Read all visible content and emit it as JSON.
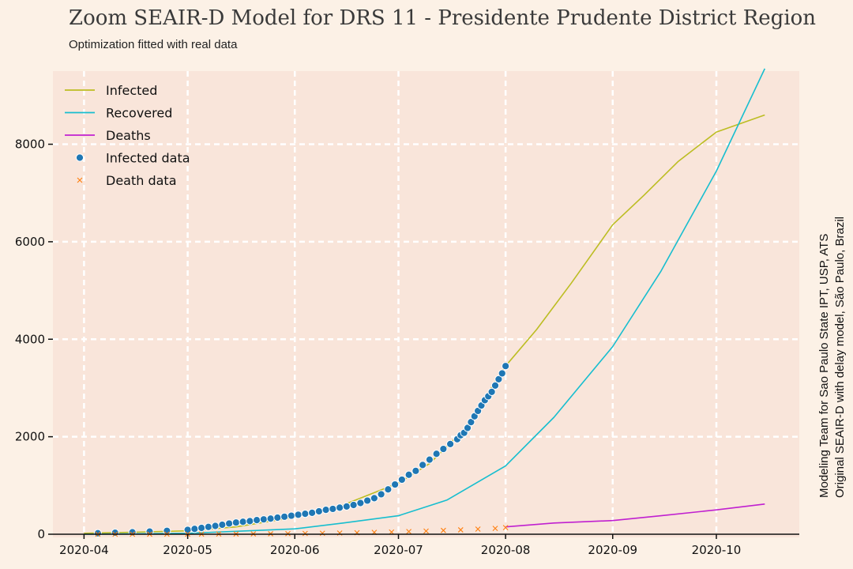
{
  "chart_data": {
    "type": "line",
    "title": "Zoom SEAIR-D Model for DRS 11 - Presidente Prudente District Region",
    "subtitle": "Optimization fitted with real data",
    "credit_lines": [
      "Modeling Team for Sao Paulo State IPT, USP, ATS",
      "Original SEAIR-D with delay model, São Paulo, Brazil"
    ],
    "xlim": [
      "2020-03-23",
      "2020-10-25"
    ],
    "ylim": [
      0,
      9500
    ],
    "grid": true,
    "legend_position": "top-left",
    "x_ticks": [
      {
        "date": "2020-04-01",
        "label": "2020-04"
      },
      {
        "date": "2020-05-01",
        "label": "2020-05"
      },
      {
        "date": "2020-06-01",
        "label": "2020-06"
      },
      {
        "date": "2020-07-01",
        "label": "2020-07"
      },
      {
        "date": "2020-08-01",
        "label": "2020-08"
      },
      {
        "date": "2020-09-01",
        "label": "2020-09"
      },
      {
        "date": "2020-10-01",
        "label": "2020-10"
      }
    ],
    "y_ticks": [
      0,
      2000,
      4000,
      6000,
      8000
    ],
    "series": [
      {
        "name": "Infected",
        "kind": "line",
        "color": "#bcbd22",
        "x": [
          "2020-04-01",
          "2020-04-15",
          "2020-05-01",
          "2020-05-15",
          "2020-06-01",
          "2020-06-15",
          "2020-07-01",
          "2020-07-10",
          "2020-07-20",
          "2020-08-01",
          "2020-08-10",
          "2020-08-20",
          "2020-09-01",
          "2020-09-10",
          "2020-09-20",
          "2020-10-01",
          "2020-10-15"
        ],
        "y": [
          20,
          40,
          70,
          150,
          350,
          600,
          1050,
          1450,
          2150,
          3450,
          4200,
          5150,
          6350,
          6950,
          7650,
          8250,
          8600
        ]
      },
      {
        "name": "Recovered",
        "kind": "line",
        "color": "#17becf",
        "x": [
          "2020-04-01",
          "2020-05-01",
          "2020-05-15",
          "2020-06-01",
          "2020-06-15",
          "2020-07-01",
          "2020-07-15",
          "2020-08-01",
          "2020-08-15",
          "2020-09-01",
          "2020-09-15",
          "2020-10-01",
          "2020-10-15"
        ],
        "y": [
          0,
          20,
          60,
          110,
          230,
          380,
          700,
          1400,
          2400,
          3850,
          5400,
          7450,
          9550
        ]
      },
      {
        "name": "Deaths",
        "kind": "line",
        "color": "#c020d0",
        "x": [
          "2020-08-01",
          "2020-08-15",
          "2020-09-01",
          "2020-09-15",
          "2020-10-01",
          "2020-10-15"
        ],
        "y": [
          150,
          230,
          280,
          380,
          500,
          620
        ]
      },
      {
        "name": "Infected data",
        "kind": "scatter",
        "marker": "circle",
        "color": "#1f77b4",
        "x": [
          "2020-04-05",
          "2020-04-10",
          "2020-04-15",
          "2020-04-20",
          "2020-04-25",
          "2020-05-01",
          "2020-05-03",
          "2020-05-05",
          "2020-05-07",
          "2020-05-09",
          "2020-05-11",
          "2020-05-13",
          "2020-05-15",
          "2020-05-17",
          "2020-05-19",
          "2020-05-21",
          "2020-05-23",
          "2020-05-25",
          "2020-05-27",
          "2020-05-29",
          "2020-05-31",
          "2020-06-02",
          "2020-06-04",
          "2020-06-06",
          "2020-06-08",
          "2020-06-10",
          "2020-06-12",
          "2020-06-14",
          "2020-06-16",
          "2020-06-18",
          "2020-06-20",
          "2020-06-22",
          "2020-06-24",
          "2020-06-26",
          "2020-06-28",
          "2020-06-30",
          "2020-07-02",
          "2020-07-04",
          "2020-07-06",
          "2020-07-08",
          "2020-07-10",
          "2020-07-12",
          "2020-07-14",
          "2020-07-16",
          "2020-07-18",
          "2020-07-19",
          "2020-07-20",
          "2020-07-21",
          "2020-07-22",
          "2020-07-23",
          "2020-07-24",
          "2020-07-25",
          "2020-07-26",
          "2020-07-27",
          "2020-07-28",
          "2020-07-29",
          "2020-07-30",
          "2020-07-31",
          "2020-08-01"
        ],
        "y": [
          20,
          30,
          40,
          55,
          70,
          90,
          110,
          130,
          150,
          170,
          195,
          220,
          240,
          255,
          270,
          290,
          305,
          320,
          340,
          360,
          380,
          400,
          420,
          440,
          470,
          500,
          520,
          545,
          570,
          600,
          640,
          690,
          740,
          820,
          920,
          1020,
          1120,
          1220,
          1300,
          1420,
          1530,
          1650,
          1750,
          1850,
          1950,
          2030,
          2080,
          2180,
          2300,
          2420,
          2530,
          2640,
          2750,
          2830,
          2920,
          3050,
          3180,
          3300,
          3450
        ]
      },
      {
        "name": "Death data",
        "kind": "scatter",
        "marker": "x",
        "color": "#ff7f0e",
        "x": [
          "2020-04-05",
          "2020-04-10",
          "2020-04-15",
          "2020-04-20",
          "2020-04-25",
          "2020-05-01",
          "2020-05-05",
          "2020-05-10",
          "2020-05-15",
          "2020-05-20",
          "2020-05-25",
          "2020-05-30",
          "2020-06-04",
          "2020-06-09",
          "2020-06-14",
          "2020-06-19",
          "2020-06-24",
          "2020-06-29",
          "2020-07-04",
          "2020-07-09",
          "2020-07-14",
          "2020-07-19",
          "2020-07-24",
          "2020-07-29",
          "2020-08-01"
        ],
        "y": [
          0,
          0,
          1,
          1,
          2,
          2,
          3,
          4,
          5,
          7,
          9,
          12,
          16,
          20,
          25,
          30,
          38,
          45,
          55,
          65,
          78,
          90,
          105,
          120,
          135
        ]
      }
    ]
  }
}
